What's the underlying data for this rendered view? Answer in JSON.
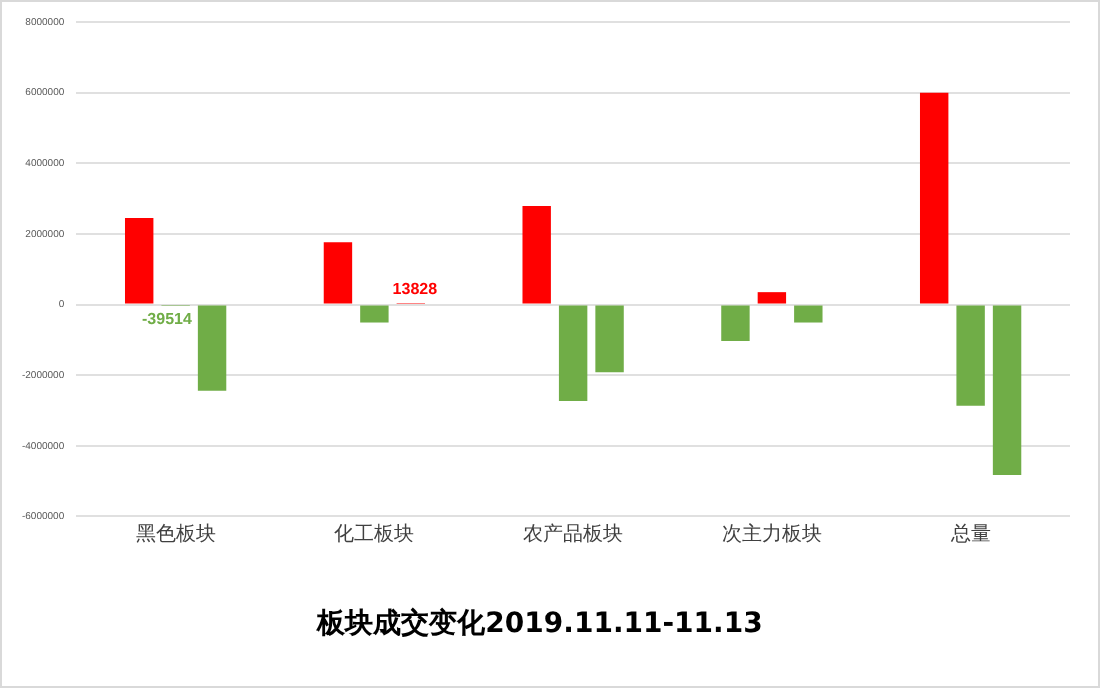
{
  "chart_data": {
    "type": "bar",
    "title": "板块成交变化2019.11.11-11.13",
    "categories": [
      "黑色板块",
      "化工板块",
      "农产品板块",
      "次主力板块",
      "总量"
    ],
    "series": [
      {
        "colors": [
          "#ff0000",
          "#ff0000",
          "#ff0000",
          "#70ad47",
          "#ff0000"
        ],
        "values": [
          2450000,
          1760000,
          2790000,
          -1030000,
          6000000
        ]
      },
      {
        "colors": [
          "#70ad47",
          "#70ad47",
          "#70ad47",
          "#ff0000",
          "#70ad47"
        ],
        "values": [
          -39514,
          -510000,
          -2730000,
          350000,
          -2870000
        ],
        "value_labels": [
          "-39514",
          null,
          null,
          null,
          null
        ]
      },
      {
        "colors": [
          "#70ad47",
          "#ff0000",
          "#70ad47",
          "#70ad47",
          "#70ad47"
        ],
        "values": [
          -2440000,
          13828,
          -1920000,
          -510000,
          -4830000
        ],
        "value_labels": [
          null,
          "13828",
          null,
          null,
          null
        ]
      }
    ],
    "ylim": [
      -6000000,
      8000000
    ],
    "yticks": [
      -6000000,
      -4000000,
      -2000000,
      0,
      2000000,
      4000000,
      6000000,
      8000000
    ],
    "grid": "y",
    "legend": false
  }
}
